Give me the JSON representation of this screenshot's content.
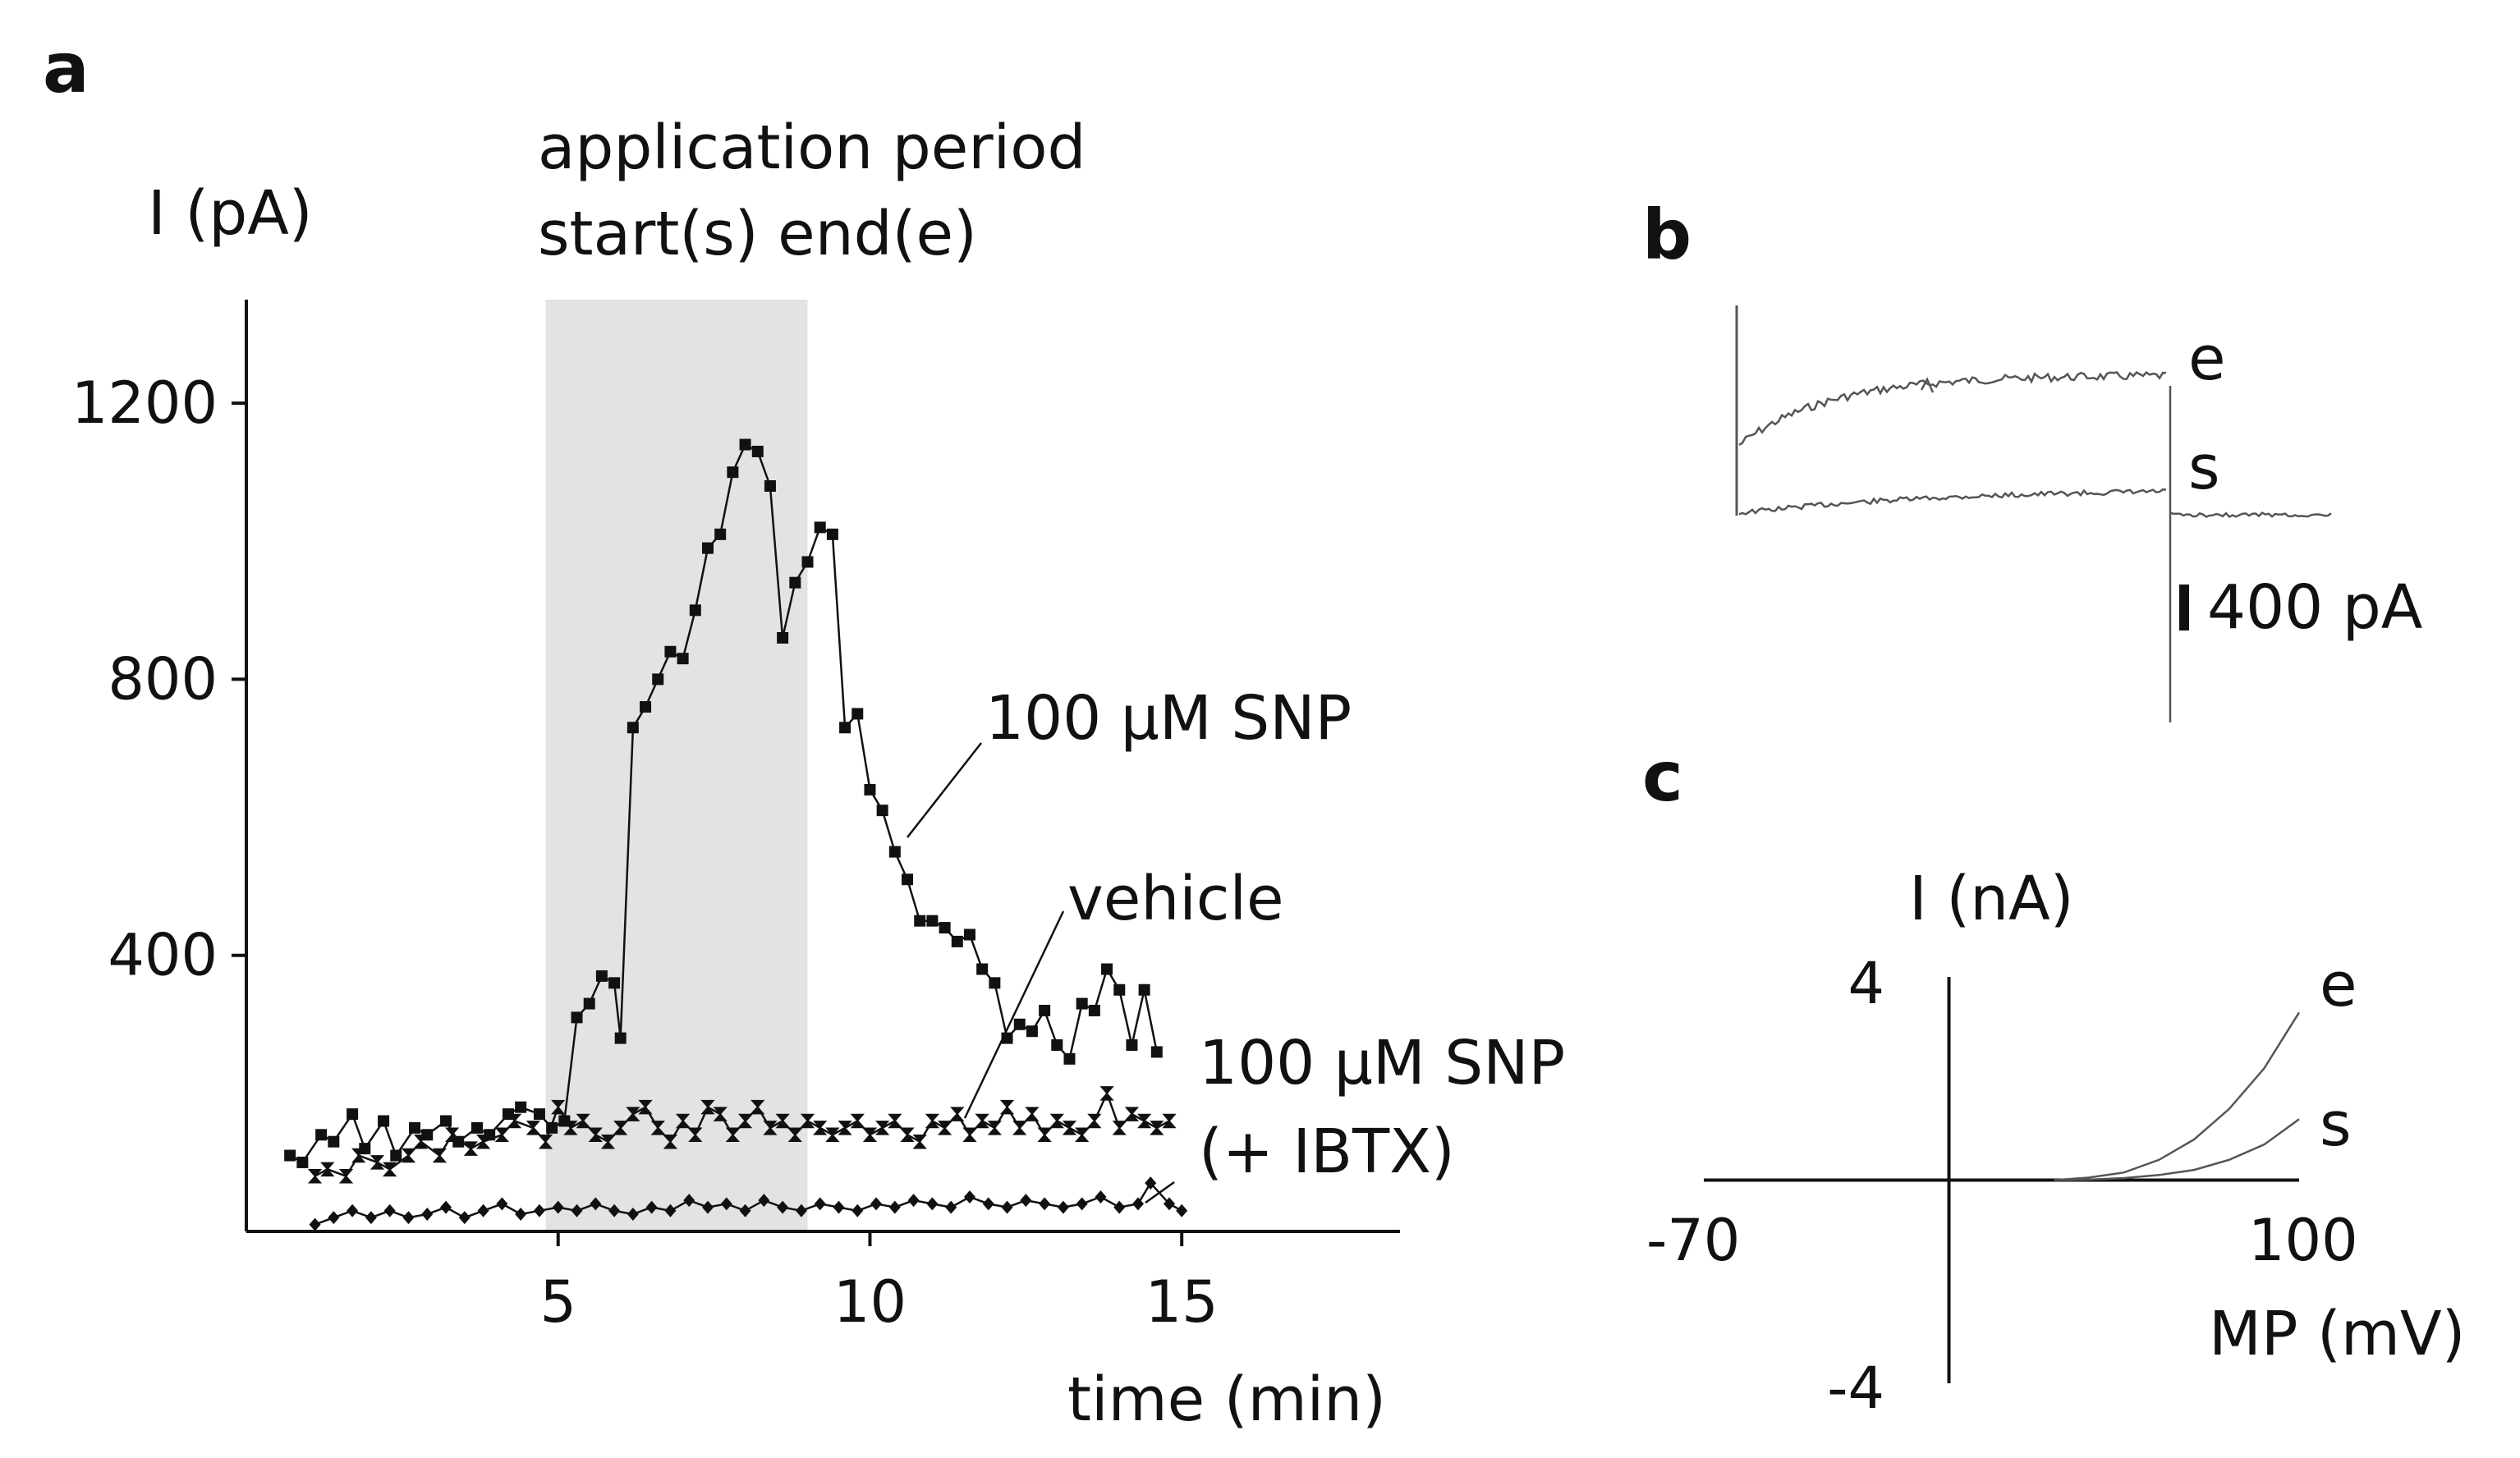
{
  "chart_data": [
    {
      "panel": "a",
      "type": "line",
      "title": "",
      "xlabel": "time (min)",
      "ylabel": "I (pA)",
      "xlim": [
        0,
        18.5
      ],
      "ylim": [
        0,
        1350
      ],
      "xticks": [
        5,
        10,
        15
      ],
      "yticks": [
        400,
        800,
        1200
      ],
      "shaded_region": {
        "start": 4.8,
        "end": 9.0,
        "label_line1": "application period",
        "label_line2": "start(s) end(e)"
      },
      "series": [
        {
          "name": "100 µM SNP",
          "marker": "square",
          "x": [
            0.7,
            0.9,
            1.2,
            1.4,
            1.7,
            1.9,
            2.2,
            2.4,
            2.7,
            2.9,
            3.2,
            3.4,
            3.7,
            3.9,
            4.2,
            4.4,
            4.7,
            4.9,
            5.1,
            5.3,
            5.5,
            5.7,
            5.9,
            6.0,
            6.2,
            6.4,
            6.6,
            6.8,
            7.0,
            7.2,
            7.4,
            7.6,
            7.8,
            8.0,
            8.2,
            8.4,
            8.6,
            8.8,
            9.0,
            9.2,
            9.4,
            9.6,
            9.8,
            10.0,
            10.2,
            10.4,
            10.6,
            10.8,
            11.0,
            11.2,
            11.4,
            11.6,
            11.8,
            12.0,
            12.2,
            12.4,
            12.6,
            12.8,
            13.0,
            13.2,
            13.4,
            13.6,
            13.8,
            14.0,
            14.2,
            14.4,
            14.6
          ],
          "y": [
            110,
            100,
            140,
            130,
            170,
            120,
            160,
            110,
            150,
            140,
            160,
            130,
            150,
            140,
            170,
            180,
            170,
            150,
            160,
            310,
            330,
            370,
            360,
            280,
            730,
            760,
            800,
            840,
            830,
            900,
            990,
            1010,
            1100,
            1140,
            1130,
            1080,
            860,
            940,
            970,
            1020,
            1010,
            730,
            750,
            640,
            610,
            550,
            510,
            450,
            450,
            440,
            420,
            430,
            380,
            360,
            280,
            300,
            290,
            320,
            270,
            250,
            330,
            320,
            380,
            350,
            270,
            350,
            260
          ]
        },
        {
          "name": "vehicle",
          "marker": "hourglass",
          "x": [
            1.1,
            1.3,
            1.6,
            1.8,
            2.1,
            2.3,
            2.6,
            2.8,
            3.1,
            3.3,
            3.6,
            3.8,
            4.1,
            4.3,
            4.6,
            4.8,
            5.0,
            5.2,
            5.4,
            5.6,
            5.8,
            6.0,
            6.2,
            6.4,
            6.6,
            6.8,
            7.0,
            7.2,
            7.4,
            7.6,
            7.8,
            8.0,
            8.2,
            8.4,
            8.6,
            8.8,
            9.0,
            9.2,
            9.4,
            9.6,
            9.8,
            10.0,
            10.2,
            10.4,
            10.6,
            10.8,
            11.0,
            11.2,
            11.4,
            11.6,
            11.8,
            12.0,
            12.2,
            12.4,
            12.6,
            12.8,
            13.0,
            13.2,
            13.4,
            13.6,
            13.8,
            14.0,
            14.2,
            14.4,
            14.6,
            14.8
          ],
          "y": [
            80,
            90,
            80,
            110,
            100,
            90,
            110,
            130,
            110,
            140,
            120,
            130,
            140,
            160,
            150,
            130,
            180,
            150,
            160,
            140,
            130,
            150,
            170,
            180,
            150,
            130,
            160,
            140,
            180,
            170,
            140,
            160,
            180,
            150,
            160,
            140,
            160,
            150,
            140,
            150,
            160,
            140,
            150,
            160,
            140,
            130,
            160,
            150,
            170,
            140,
            160,
            150,
            180,
            150,
            170,
            140,
            160,
            150,
            140,
            160,
            200,
            150,
            170,
            160,
            150,
            160
          ]
        },
        {
          "name": "100 µM SNP",
          "name_line2": "(+ IBTX)",
          "marker": "diamond",
          "x": [
            1.1,
            1.4,
            1.7,
            2.0,
            2.3,
            2.6,
            2.9,
            3.2,
            3.5,
            3.8,
            4.1,
            4.4,
            4.7,
            5.0,
            5.3,
            5.6,
            5.9,
            6.2,
            6.5,
            6.8,
            7.1,
            7.4,
            7.7,
            8.0,
            8.3,
            8.6,
            8.9,
            9.2,
            9.5,
            9.8,
            10.1,
            10.4,
            10.7,
            11.0,
            11.3,
            11.6,
            11.9,
            12.2,
            12.5,
            12.8,
            13.1,
            13.4,
            13.7,
            14.0,
            14.3,
            14.5,
            14.8,
            15.0
          ],
          "y": [
            10,
            20,
            30,
            20,
            30,
            20,
            25,
            35,
            20,
            30,
            40,
            25,
            30,
            35,
            30,
            40,
            30,
            25,
            35,
            30,
            45,
            35,
            40,
            30,
            45,
            35,
            30,
            40,
            35,
            30,
            40,
            35,
            45,
            40,
            35,
            50,
            40,
            35,
            45,
            40,
            35,
            40,
            50,
            35,
            40,
            70,
            40,
            30
          ]
        }
      ]
    },
    {
      "panel": "b",
      "type": "line",
      "title": "",
      "trace_labels": [
        "e",
        "s"
      ],
      "scale_bar_label": "400 pA"
    },
    {
      "panel": "c",
      "type": "line",
      "title": "",
      "xlabel": "MP (mV)",
      "ylabel": "I (nA)",
      "xlim": [
        -70,
        100
      ],
      "ylim": [
        -4,
        4
      ],
      "xtick_labels": [
        "-70",
        "100"
      ],
      "ytick_labels": [
        "4",
        "-4"
      ],
      "series": [
        {
          "name": "e",
          "x": [
            30,
            40,
            50,
            60,
            70,
            80,
            90,
            100
          ],
          "y": [
            0,
            0.05,
            0.15,
            0.4,
            0.8,
            1.4,
            2.2,
            3.3
          ]
        },
        {
          "name": "s",
          "x": [
            30,
            40,
            50,
            60,
            70,
            80,
            90,
            100
          ],
          "y": [
            0,
            0.01,
            0.04,
            0.1,
            0.2,
            0.4,
            0.7,
            1.2
          ]
        }
      ]
    }
  ],
  "panel_letters": {
    "a": "a",
    "b": "b",
    "c": "c"
  }
}
